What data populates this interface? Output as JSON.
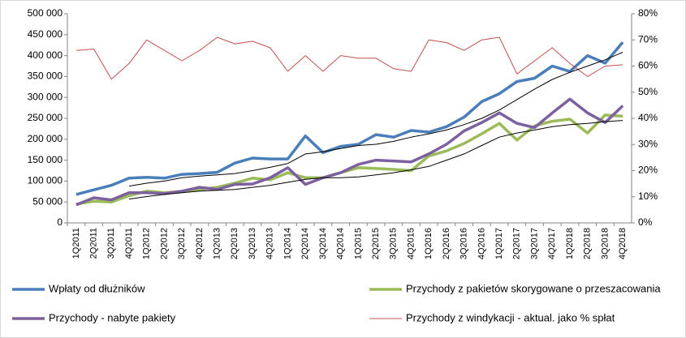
{
  "chart_data": {
    "type": "line",
    "categories": [
      "1Q2011",
      "2Q2011",
      "3Q2011",
      "4Q2011",
      "1Q2012",
      "2Q2012",
      "3Q2012",
      "4Q2012",
      "1Q2013",
      "2Q2013",
      "3Q2013",
      "4Q2013",
      "1Q2014",
      "2Q2014",
      "3Q2014",
      "4Q2014",
      "1Q2015",
      "2Q2015",
      "3Q2015",
      "4Q2015",
      "1Q2016",
      "2Q2016",
      "3Q2016",
      "4Q2016",
      "1Q2017",
      "2Q2017",
      "3Q2017",
      "4Q2017",
      "1Q2018",
      "2Q2018",
      "3Q2018",
      "4Q2018"
    ],
    "series": [
      {
        "name": "Wpłaty od dłużników",
        "color": "#4a7ebb",
        "width": 3.5,
        "values": [
          68000,
          79000,
          90000,
          107000,
          109000,
          107000,
          116000,
          118000,
          121000,
          143000,
          155000,
          153000,
          153000,
          208000,
          168000,
          183000,
          188000,
          211000,
          205000,
          221000,
          217000,
          230000,
          253000,
          290000,
          309000,
          338000,
          346000,
          375000,
          362000,
          400000,
          382000,
          432000
        ]
      },
      {
        "name": "Przychody z pakietów skorygowane o przeszacowania",
        "color": "#9bbb59",
        "width": 3.5,
        "values": [
          45000,
          52000,
          50000,
          65000,
          76000,
          72000,
          75000,
          80000,
          85000,
          95000,
          107000,
          103000,
          120000,
          108000,
          108000,
          120000,
          132000,
          130000,
          128000,
          125000,
          160000,
          172000,
          190000,
          213000,
          238000,
          198000,
          232000,
          243000,
          248000,
          215000,
          258000,
          255000
        ]
      },
      {
        "name": "Przychody - nabyte pakiety",
        "color": "#7d60a0",
        "width": 3.5,
        "values": [
          43000,
          60000,
          55000,
          72000,
          72000,
          70000,
          76000,
          85000,
          80000,
          92000,
          93000,
          108000,
          132000,
          92000,
          108000,
          120000,
          140000,
          150000,
          148000,
          146000,
          165000,
          188000,
          220000,
          240000,
          263000,
          238000,
          228000,
          263000,
          296000,
          263000,
          240000,
          280000
        ]
      },
      {
        "name": "Przychody z windykacji - aktual. jako % spłat",
        "color": "#c0504d",
        "width": 1,
        "axis": "y2",
        "values": [
          66,
          66.5,
          55,
          61,
          70,
          66,
          62,
          66,
          71,
          68.5,
          69.5,
          67,
          58,
          64,
          58,
          64,
          63,
          63,
          59,
          58,
          70,
          69,
          66,
          70,
          71,
          57,
          62,
          67,
          61,
          56,
          60,
          60.5
        ]
      },
      {
        "color": "#000000",
        "width": 1,
        "values": [
          null,
          null,
          null,
          88000,
          95000,
          100000,
          108000,
          112000,
          115000,
          118000,
          125000,
          133000,
          142000,
          165000,
          170000,
          178000,
          185000,
          188000,
          195000,
          205000,
          213000,
          222000,
          235000,
          250000,
          270000,
          295000,
          320000,
          343000,
          360000,
          375000,
          390000,
          408000
        ]
      },
      {
        "color": "#000000",
        "width": 1,
        "values": [
          null,
          null,
          null,
          57000,
          63000,
          68000,
          72000,
          76000,
          78000,
          80000,
          85000,
          90000,
          97000,
          104000,
          108000,
          108000,
          110000,
          115000,
          120000,
          127000,
          135000,
          150000,
          165000,
          185000,
          205000,
          215000,
          222000,
          230000,
          235000,
          238000,
          242000,
          245000
        ]
      }
    ],
    "ylim": [
      0,
      500000
    ],
    "yticks": [
      0,
      {
        "value": 50000,
        "label": "50 000"
      },
      {
        "value": 100000,
        "label": "100 000"
      },
      {
        "value": 150000,
        "label": "150 000"
      },
      {
        "value": 200000,
        "label": "200 000"
      },
      {
        "value": 250000,
        "label": "250 000"
      },
      {
        "value": 300000,
        "label": "300 000"
      },
      {
        "value": 350000,
        "label": "350 000"
      },
      {
        "value": 400000,
        "label": "400 000"
      },
      {
        "value": 450000,
        "label": "450 000"
      },
      {
        "value": 500000,
        "label": "500 000"
      }
    ],
    "y2lim": [
      0,
      80
    ],
    "y2ticks": [
      {
        "value": 0,
        "label": "0%"
      },
      {
        "value": 10,
        "label": "10%"
      },
      {
        "value": 20,
        "label": "20%"
      },
      {
        "value": 30,
        "label": "30%"
      },
      {
        "value": 40,
        "label": "40%"
      },
      {
        "value": 50,
        "label": "50%"
      },
      {
        "value": 60,
        "label": "60%"
      },
      {
        "value": 70,
        "label": "70%"
      },
      {
        "value": 80,
        "label": "80%"
      }
    ],
    "legend": "bottom"
  }
}
